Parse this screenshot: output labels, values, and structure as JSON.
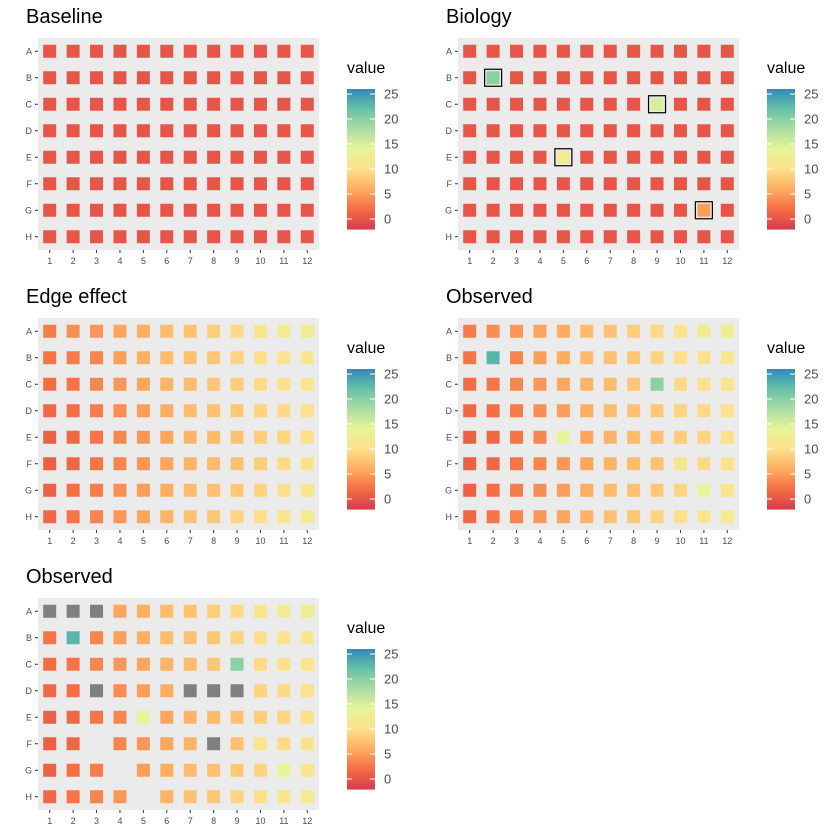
{
  "chart_data": [
    {
      "type": "heatmap",
      "title": "Baseline",
      "rows": [
        "A",
        "B",
        "C",
        "D",
        "E",
        "F",
        "G",
        "H"
      ],
      "columns": [
        "1",
        "2",
        "3",
        "4",
        "5",
        "6",
        "7",
        "8",
        "9",
        "10",
        "11",
        "12"
      ],
      "values": [
        [
          0,
          0,
          0,
          0,
          0,
          0,
          0,
          0,
          0,
          0,
          0,
          0
        ],
        [
          0,
          0,
          0,
          0,
          0,
          0,
          0,
          0,
          0,
          0,
          0,
          0
        ],
        [
          0,
          0,
          0,
          0,
          0,
          0,
          0,
          0,
          0,
          0,
          0,
          0
        ],
        [
          0,
          0,
          0,
          0,
          0,
          0,
          0,
          0,
          0,
          0,
          0,
          0
        ],
        [
          0,
          0,
          0,
          0,
          0,
          0,
          0,
          0,
          0,
          0,
          0,
          0
        ],
        [
          0,
          0,
          0,
          0,
          0,
          0,
          0,
          0,
          0,
          0,
          0,
          0
        ],
        [
          0,
          0,
          0,
          0,
          0,
          0,
          0,
          0,
          0,
          0,
          0,
          0
        ],
        [
          0,
          0,
          0,
          0,
          0,
          0,
          0,
          0,
          0,
          0,
          0,
          0
        ]
      ],
      "highlighted": [],
      "legend": {
        "title": "value",
        "ticks": [
          0,
          5,
          10,
          15,
          20,
          25
        ],
        "range": [
          -2,
          26
        ]
      }
    },
    {
      "type": "heatmap",
      "title": "Biology",
      "rows": [
        "A",
        "B",
        "C",
        "D",
        "E",
        "F",
        "G",
        "H"
      ],
      "columns": [
        "1",
        "2",
        "3",
        "4",
        "5",
        "6",
        "7",
        "8",
        "9",
        "10",
        "11",
        "12"
      ],
      "values": [
        [
          0,
          0,
          0,
          0,
          0,
          0,
          0,
          0,
          0,
          0,
          0,
          0
        ],
        [
          0,
          20,
          0,
          0,
          0,
          0,
          0,
          0,
          0,
          0,
          0,
          0
        ],
        [
          0,
          0,
          0,
          0,
          0,
          0,
          0,
          0,
          15,
          0,
          0,
          0
        ],
        [
          0,
          0,
          0,
          0,
          0,
          0,
          0,
          0,
          0,
          0,
          0,
          0
        ],
        [
          0,
          0,
          0,
          0,
          12,
          0,
          0,
          0,
          0,
          0,
          0,
          0
        ],
        [
          0,
          0,
          0,
          0,
          0,
          0,
          0,
          0,
          0,
          0,
          0,
          0
        ],
        [
          0,
          0,
          0,
          0,
          0,
          0,
          0,
          0,
          0,
          0,
          5,
          0
        ],
        [
          0,
          0,
          0,
          0,
          0,
          0,
          0,
          0,
          0,
          0,
          0,
          0
        ]
      ],
      "highlighted": [
        [
          1,
          1
        ],
        [
          2,
          8
        ],
        [
          4,
          4
        ],
        [
          6,
          10
        ]
      ],
      "legend": {
        "title": "value",
        "ticks": [
          0,
          5,
          10,
          15,
          20,
          25
        ],
        "range": [
          -2,
          26
        ]
      }
    },
    {
      "type": "heatmap",
      "title": "Edge effect",
      "rows": [
        "A",
        "B",
        "C",
        "D",
        "E",
        "F",
        "G",
        "H"
      ],
      "columns": [
        "1",
        "2",
        "3",
        "4",
        "5",
        "6",
        "7",
        "8",
        "9",
        "10",
        "11",
        "12"
      ],
      "values": [
        [
          3,
          4,
          4.5,
          5.5,
          6,
          7,
          7.5,
          8.5,
          9.5,
          11,
          12,
          12.5
        ],
        [
          2.5,
          3,
          3.5,
          5,
          6,
          7,
          7.5,
          8,
          9,
          10,
          10.5,
          11.5
        ],
        [
          2,
          2.5,
          3.5,
          4.5,
          5.5,
          6.5,
          7,
          8,
          8.5,
          9.5,
          10,
          11
        ],
        [
          1.5,
          2,
          3,
          4,
          5,
          6,
          7,
          7.5,
          8,
          9,
          9.5,
          10.5
        ],
        [
          1,
          1.5,
          2.5,
          3.5,
          4.5,
          5.5,
          6.5,
          7,
          7.5,
          8.5,
          9,
          10
        ],
        [
          1,
          1.5,
          2.5,
          3.5,
          4.5,
          5.5,
          6.5,
          7,
          7.5,
          8.5,
          9.5,
          10.5
        ],
        [
          1,
          2,
          3,
          4,
          5,
          6,
          7,
          7.5,
          8,
          9,
          10,
          11
        ],
        [
          1.5,
          2.5,
          3.5,
          4.5,
          5.5,
          6.5,
          7.5,
          8,
          9,
          10,
          11,
          12
        ]
      ],
      "highlighted": [],
      "legend": {
        "title": "value",
        "ticks": [
          0,
          5,
          10,
          15,
          20,
          25
        ],
        "range": [
          -2,
          26
        ]
      }
    },
    {
      "type": "heatmap",
      "title": "Observed",
      "rows": [
        "A",
        "B",
        "C",
        "D",
        "E",
        "F",
        "G",
        "H"
      ],
      "columns": [
        "1",
        "2",
        "3",
        "4",
        "5",
        "6",
        "7",
        "8",
        "9",
        "10",
        "11",
        "12"
      ],
      "values": [
        [
          3,
          4,
          4.5,
          5.5,
          6,
          7,
          7.5,
          8.5,
          9.5,
          11,
          12,
          12.5
        ],
        [
          2.5,
          23,
          3.5,
          5,
          6,
          7,
          7.5,
          8,
          9,
          10,
          10.5,
          11.5
        ],
        [
          2,
          2.5,
          3.5,
          4.5,
          5.5,
          6.5,
          7,
          8,
          20,
          9.5,
          10,
          11
        ],
        [
          1.5,
          2,
          3,
          4,
          5,
          6,
          7,
          7.5,
          8,
          9,
          9.5,
          10.5
        ],
        [
          1,
          1.5,
          2.5,
          3.5,
          14,
          5.5,
          6.5,
          7,
          7.5,
          8.5,
          9,
          10
        ],
        [
          1,
          1.5,
          2.5,
          3.5,
          4.5,
          5.5,
          6.5,
          7,
          7.5,
          11,
          9.5,
          10.5
        ],
        [
          1,
          2,
          3,
          4,
          5,
          6,
          7,
          7.5,
          8,
          9,
          14,
          11
        ],
        [
          1.5,
          2.5,
          3.5,
          4.5,
          5.5,
          6.5,
          7.5,
          8,
          9,
          10,
          11,
          12
        ]
      ],
      "highlighted": [],
      "legend": {
        "title": "value",
        "ticks": [
          0,
          5,
          10,
          15,
          20,
          25
        ],
        "range": [
          -2,
          26
        ]
      }
    },
    {
      "type": "heatmap",
      "title": "Observed",
      "rows": [
        "A",
        "B",
        "C",
        "D",
        "E",
        "F",
        "G",
        "H"
      ],
      "columns": [
        "1",
        "2",
        "3",
        "4",
        "5",
        "6",
        "7",
        "8",
        "9",
        "10",
        "11",
        "12"
      ],
      "values": [
        [
          "NA",
          "NA",
          "NA",
          5.5,
          6,
          7,
          7.5,
          8.5,
          9.5,
          11,
          12,
          12.5
        ],
        [
          2.5,
          23,
          3.5,
          5,
          6,
          7,
          7.5,
          8,
          9,
          10,
          10.5,
          11.5
        ],
        [
          2,
          2.5,
          3.5,
          4.5,
          5.5,
          6.5,
          7,
          8,
          20,
          9.5,
          10,
          11
        ],
        [
          1.5,
          2,
          "NA",
          4,
          5,
          6,
          "NA",
          "NA",
          "NA",
          9,
          9.5,
          10.5
        ],
        [
          1,
          1.5,
          2.5,
          3.5,
          14,
          5.5,
          6.5,
          7,
          7.5,
          8.5,
          9,
          10
        ],
        [
          1,
          1.5,
          null,
          3.5,
          4.5,
          5.5,
          6.5,
          "NA",
          7.5,
          11,
          9.5,
          10.5
        ],
        [
          1,
          2,
          3,
          null,
          5,
          6,
          7,
          7.5,
          8,
          9,
          14,
          11
        ],
        [
          1.5,
          2.5,
          3.5,
          4.5,
          null,
          6.5,
          7.5,
          8,
          9,
          10,
          11,
          12
        ]
      ],
      "highlighted": [],
      "legend": {
        "title": "value",
        "ticks": [
          0,
          5,
          10,
          15,
          20,
          25
        ],
        "range": [
          -2,
          26
        ]
      }
    }
  ],
  "colors": {
    "panel_bg": "#ebebeb",
    "na_fill": "#7f7f7f",
    "scale": [
      "#d53e4f",
      "#f46d43",
      "#fdae61",
      "#fee08b",
      "#e6f598",
      "#abdda4",
      "#66c2a5",
      "#3288bd"
    ]
  }
}
